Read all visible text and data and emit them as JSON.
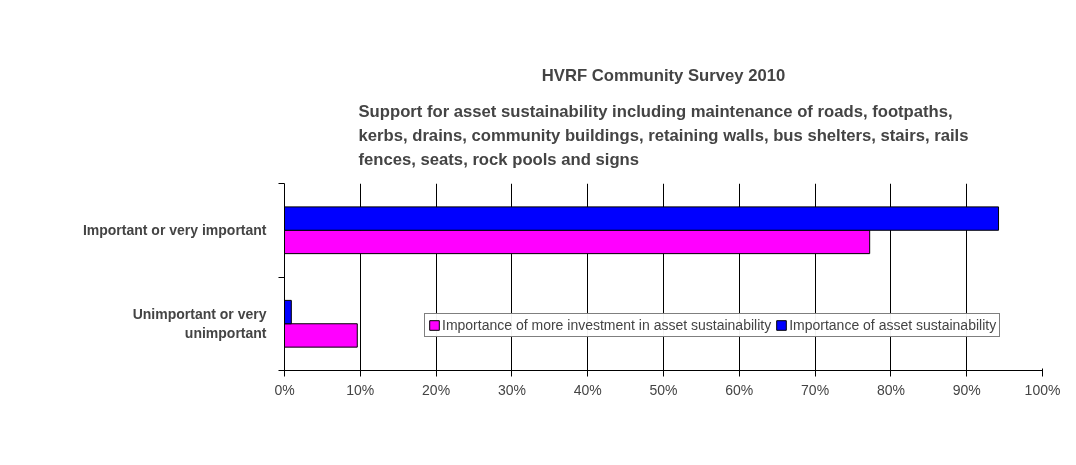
{
  "chart_data": {
    "type": "bar",
    "orientation": "horizontal",
    "title": "HVRF Community Survey 2010",
    "subtitle": "Support for asset sustainability including maintenance of roads, footpaths,\nkerbs, drains, community buildings, retaining walls, bus shelters, stairs, rails\nfences, seats, rock pools and signs",
    "categories": [
      "Important or very important",
      "Unimportant or very\nunimportant"
    ],
    "series": [
      {
        "name": "Importance of more investment in asset sustainability",
        "color": "#ff00ff",
        "values": [
          77.2,
          9.6
        ]
      },
      {
        "name": "Importance of asset sustainability",
        "color": "#0000ff",
        "values": [
          94.2,
          0.9
        ]
      }
    ],
    "xlim": [
      0,
      100
    ],
    "xticks": [
      {
        "value": 0,
        "label": "0%"
      },
      {
        "value": 10,
        "label": "10%"
      },
      {
        "value": 20,
        "label": "20%"
      },
      {
        "value": 30,
        "label": "30%"
      },
      {
        "value": 40,
        "label": "40%"
      },
      {
        "value": 50,
        "label": "50%"
      },
      {
        "value": 60,
        "label": "60%"
      },
      {
        "value": 70,
        "label": "70%"
      },
      {
        "value": 80,
        "label": "80%"
      },
      {
        "value": 90,
        "label": "90%"
      },
      {
        "value": 100,
        "label": "100%"
      }
    ],
    "grid": "x",
    "legend": "bottom"
  }
}
